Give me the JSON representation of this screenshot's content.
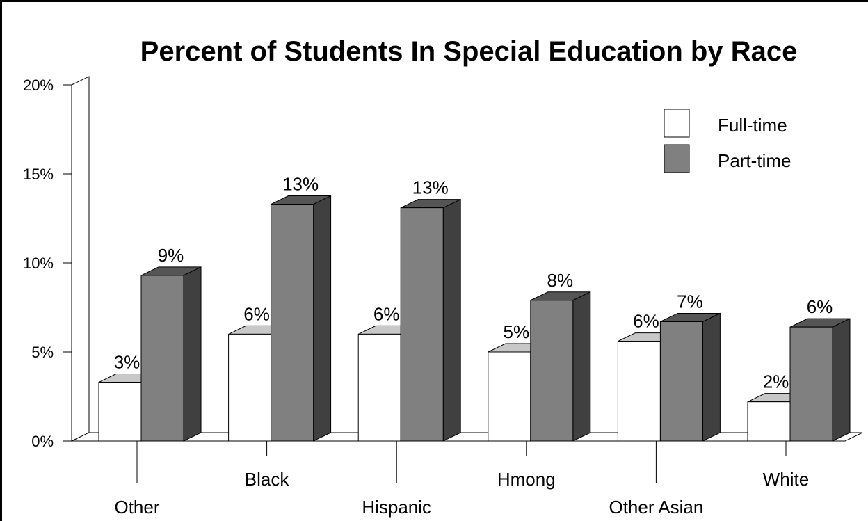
{
  "chart_data": {
    "type": "bar",
    "title": "Percent of Students In Special Education by Race",
    "categories": [
      "Other",
      "Black",
      "Hispanic",
      "Hmong",
      "Other Asian",
      "White"
    ],
    "series": [
      {
        "name": "Full-time",
        "values": [
          3.3,
          6.0,
          6.0,
          5.0,
          5.6,
          2.2
        ],
        "labels": [
          "3%",
          "6%",
          "6%",
          "5%",
          "6%",
          "2%"
        ]
      },
      {
        "name": "Part-time",
        "values": [
          9.3,
          13.3,
          13.1,
          7.9,
          6.7,
          6.4
        ],
        "labels": [
          "9%",
          "13%",
          "13%",
          "8%",
          "7%",
          "6%"
        ]
      }
    ],
    "ylim": [
      0,
      20
    ],
    "yticks": [
      "0%",
      "5%",
      "10%",
      "15%",
      "20%"
    ],
    "legend": "top-right",
    "colors": {
      "full_time": "#ffffff",
      "part_time": "#808080",
      "part_time_side": "#404040",
      "part_time_top": "#555555",
      "full_time_top": "#c8c8c8"
    }
  }
}
